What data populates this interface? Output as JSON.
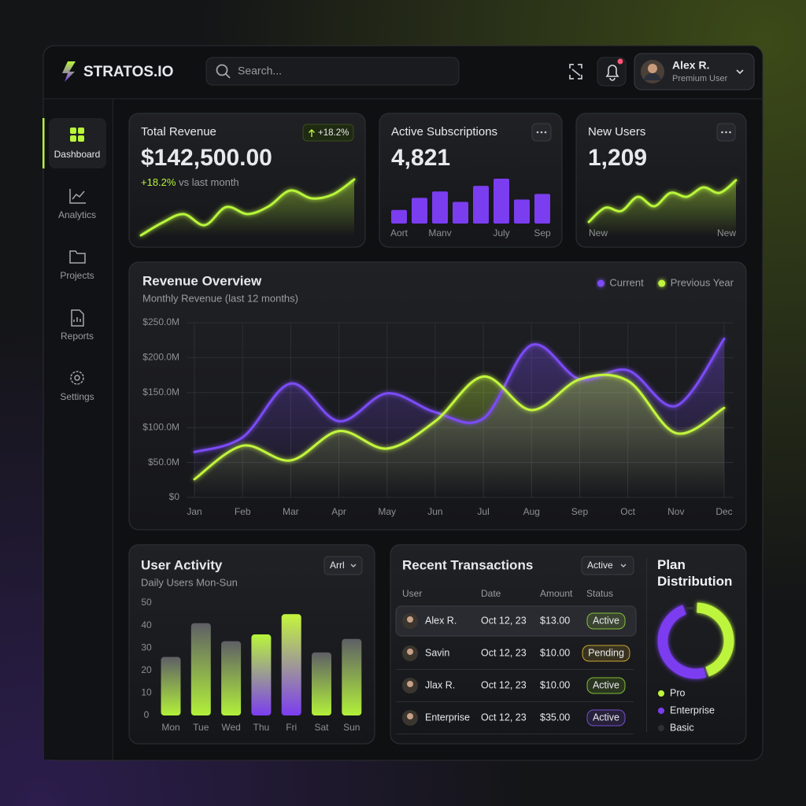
{
  "header": {
    "brand": "STRATOS.IO",
    "search": "Search...",
    "user_name": "Alex R.",
    "user_role": "Premium User"
  },
  "nav": [
    "Dashboard",
    "Analytics",
    "Projects",
    "Reports",
    "Settings"
  ],
  "chart_data": [
    {
      "type": "area",
      "title": "Total Revenue",
      "headline": "$142,500.00",
      "badge": "+18.2%",
      "change": "+18.2%",
      "change_note": "vs last month",
      "values": [
        1,
        17,
        28,
        14,
        37,
        28,
        38,
        58,
        48,
        53,
        72
      ],
      "color": "#b8f53a"
    },
    {
      "type": "bar",
      "title": "Active Subscriptions",
      "headline": "4,821",
      "categories": [
        "Aort",
        null,
        "Manv",
        null,
        null,
        "July",
        null,
        "Sep"
      ],
      "values": [
        17,
        32,
        40,
        27,
        47,
        56,
        30,
        37
      ],
      "color": "#7b3df0"
    },
    {
      "type": "area",
      "title": "New Users",
      "headline": "1,209",
      "categories": [
        "New",
        null,
        null,
        null,
        null,
        null,
        null,
        null,
        null,
        "New"
      ],
      "values": [
        0,
        18,
        14,
        32,
        20,
        37,
        32,
        44,
        37,
        53
      ],
      "color": "#b8f53a"
    },
    {
      "type": "line",
      "title": "Revenue Overview",
      "subtitle": "Monthly Revenue (last 12 months)",
      "categories": [
        "Jan",
        "Feb",
        "Mar",
        "Apr",
        "May",
        "Jun",
        "Jul",
        "Aug",
        "Sep",
        "Oct",
        "Nov",
        "Dec"
      ],
      "series": [
        {
          "name": "Current",
          "color": "#7b4cf5",
          "values": [
            65,
            86,
            163,
            109,
            149,
            122,
            113,
            218,
            169,
            182,
            131,
            227
          ]
        },
        {
          "name": "Previous Year",
          "color": "#c2f53e",
          "values": [
            26,
            74,
            53,
            95,
            70,
            109,
            173,
            125,
            169,
            167,
            92,
            128
          ]
        }
      ],
      "ylim": [
        0,
        250
      ],
      "yticks": [
        {
          "value": 0,
          "label": "$0"
        },
        {
          "value": 50,
          "label": "$50.0M"
        },
        {
          "value": 100,
          "label": "$100.0M"
        },
        {
          "value": 150,
          "label": "$150.0M"
        },
        {
          "value": 200,
          "label": "$200.0M"
        },
        {
          "value": 250,
          "label": "$250.0M"
        }
      ],
      "grid": true,
      "legend": "top-right"
    },
    {
      "type": "bar",
      "title": "User Activity",
      "subtitle": "Daily Users Mon-Sun",
      "filter": "Arrl",
      "categories": [
        "Mon",
        "Tue",
        "Wed",
        "Thu",
        "Fri",
        "Sat",
        "Sun"
      ],
      "values": [
        26,
        41,
        33,
        36,
        45,
        28,
        34
      ],
      "colors": [
        [
          "#5e5f66",
          "#b2f03a"
        ],
        [
          "#5e5f66",
          "#b2f03a"
        ],
        [
          "#5e5f66",
          "#b2f03a"
        ],
        [
          "#b8f53a",
          "#7b3df0"
        ],
        [
          "#c4f53c",
          "#7b3df0"
        ],
        [
          "#5e5f66",
          "#b2f03a"
        ],
        [
          "#5e5f66",
          "#b2f03a"
        ]
      ],
      "ylim": [
        0,
        50
      ],
      "yticks": [
        0,
        10,
        20,
        30,
        40,
        50
      ],
      "grid": false
    },
    {
      "type": "donut",
      "title": "Plan Distribution",
      "categories": [
        "Pro",
        "Enterprise",
        "Basic"
      ],
      "values": [
        45,
        50,
        5
      ],
      "colors": [
        "#bdf53c",
        "#7b3df0",
        "#2f3036"
      ]
    }
  ],
  "transactions": {
    "title": "Recent Transactions",
    "filter": "Active",
    "columns": [
      "User",
      "Date",
      "Amount",
      "Status"
    ],
    "rows": [
      [
        "Alex R.",
        "Oct 12, 23",
        "$13.00",
        "Active"
      ],
      [
        "Savin",
        "Oct 12, 23",
        "$10.00",
        "Pending"
      ],
      [
        "Jlax R.",
        "Oct 12, 23",
        "$10.00",
        "Active"
      ],
      [
        "Enterprise",
        "Oct 12, 23",
        "$35.00",
        "Active"
      ]
    ],
    "status_colors": [
      "#9be23a",
      "#f2c531",
      "#9be23a",
      "#8b5cf6"
    ]
  }
}
